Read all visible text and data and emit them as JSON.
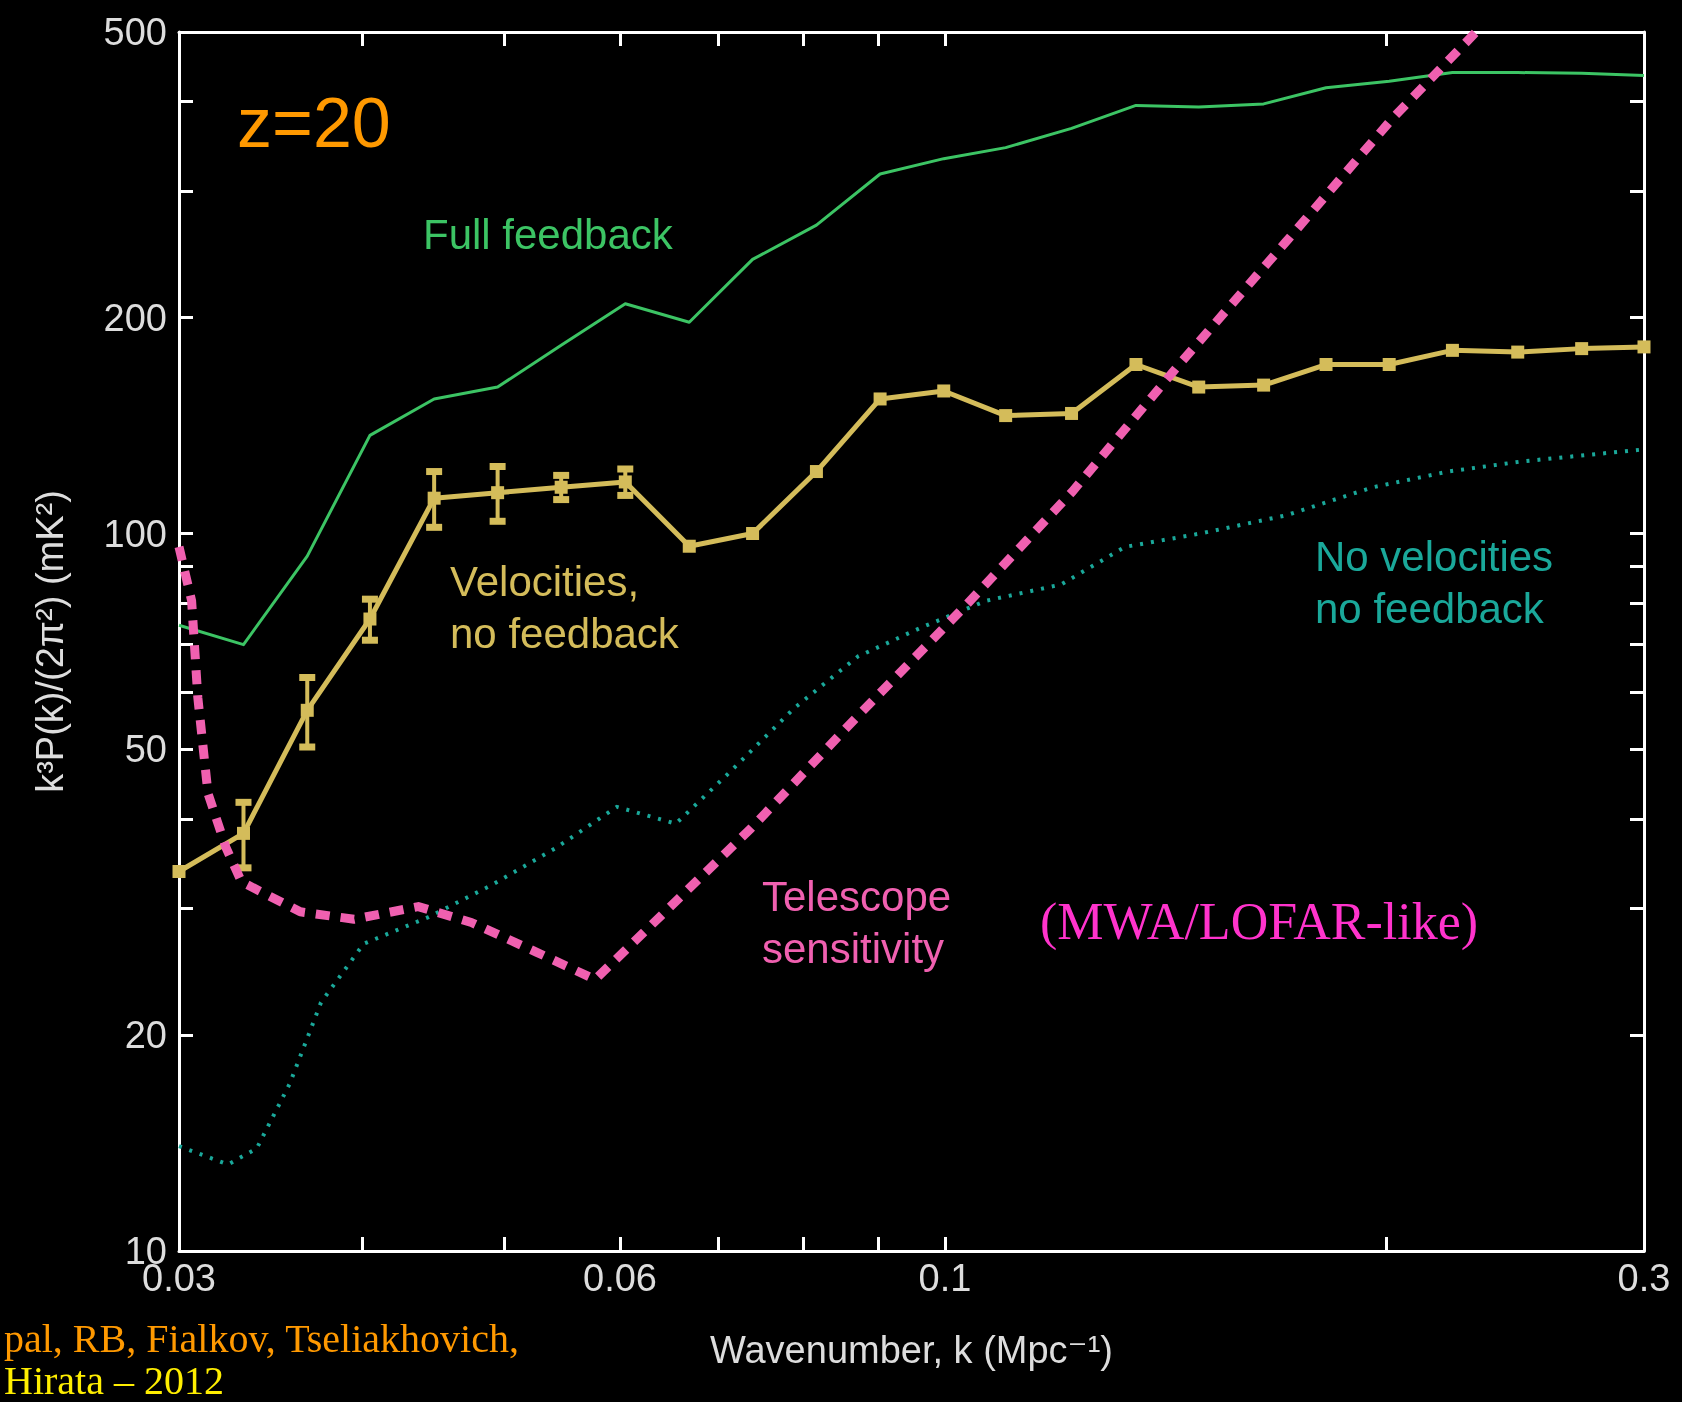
{
  "chart_data": {
    "type": "line",
    "xlabel": "Wavenumber, k (Mpc⁻¹)",
    "ylabel": "k³P(k)/(2π²) (mK²)",
    "log": "xy",
    "xlim": [
      0.03,
      0.3
    ],
    "xticks": [
      0.03,
      {
        "value": 0.04,
        "label": null
      },
      {
        "value": 0.05,
        "label": null
      },
      0.06,
      {
        "value": 0.07,
        "label": null
      },
      {
        "value": 0.08,
        "label": null
      },
      {
        "value": 0.09,
        "label": null
      },
      0.1,
      {
        "value": 0.2,
        "label": null
      },
      0.3
    ],
    "ylim": [
      10,
      500
    ],
    "yticks": [
      10,
      20,
      {
        "value": 30,
        "label": null
      },
      {
        "value": 40,
        "label": null
      },
      50,
      {
        "value": 60,
        "label": null
      },
      {
        "value": 70,
        "label": null
      },
      {
        "value": 80,
        "label": null
      },
      {
        "value": 90,
        "label": null
      },
      100,
      200,
      {
        "value": 300,
        "label": null
      },
      {
        "value": 400,
        "label": null
      },
      500
    ],
    "x": [
      0.03,
      0.0332,
      0.0367,
      0.0405,
      0.0448,
      0.0495,
      0.0547,
      0.0605,
      0.0669,
      0.0739,
      0.0817,
      0.0903,
      0.0998,
      0.11,
      0.122,
      0.135,
      0.149,
      0.165,
      0.182,
      0.201,
      0.222,
      0.246,
      0.272,
      0.3
    ],
    "series": [
      {
        "name": "Full feedback",
        "color": "#3cc464",
        "line_style": "solid",
        "values": [
          74.5,
          70,
          93,
          137,
          154,
          160,
          183,
          209,
          197,
          241,
          269,
          317,
          333,
          345,
          367,
          395,
          393,
          397,
          418,
          427,
          439,
          439,
          438,
          435
        ]
      },
      {
        "name": "Velocities,\nno feedback",
        "color": "#d4bc5a",
        "line_style": "solid",
        "marker": "square",
        "values": [
          33.8,
          38.2,
          56.7,
          76,
          112,
          114,
          116,
          118,
          96,
          100,
          122,
          154,
          158,
          146,
          147,
          172,
          160,
          161,
          172,
          172,
          180,
          179,
          181,
          182
        ],
        "errors": [
          null,
          4,
          6.3,
          5,
          10,
          10,
          4.5,
          5,
          null,
          null,
          null,
          null,
          null,
          null,
          null,
          null,
          null,
          null,
          null,
          null,
          null,
          null,
          null,
          null
        ]
      },
      {
        "name": "No velocities\nno feedback",
        "color": "#1aa89a",
        "line_style": "dotted",
        "x": [
          0.03,
          0.0324,
          0.0339,
          0.0357,
          0.0375,
          0.0401,
          0.0444,
          0.0491,
          0.0543,
          0.0597,
          0.0655,
          0.0713,
          0.0789,
          0.0872,
          0.0964,
          0.1067,
          0.12,
          0.1327,
          0.1494,
          0.1709,
          0.1959,
          0.2205,
          0.2474,
          0.3
        ],
        "values": [
          14.0,
          13.2,
          13.9,
          17.1,
          22.2,
          26.8,
          29.2,
          32.4,
          36.5,
          41.6,
          39.4,
          46.5,
          57.1,
          67.4,
          74,
          80.6,
          84.9,
          95.8,
          100,
          106,
          116,
          122,
          126,
          131
        ]
      },
      {
        "name": "Telescope\nsensitivity",
        "color": "#f060b0",
        "line_style": "dashed",
        "x": [
          0.03,
          0.0306,
          0.0309,
          0.0314,
          0.0323,
          0.0331,
          0.0363,
          0.0395,
          0.0437,
          0.0475,
          0.0526,
          0.0577,
          0.0644,
          0.0737,
          0.0872,
          0.1032,
          0.1222,
          0.1445,
          0.1709,
          0.2023,
          0.2304
        ],
        "values": [
          95.8,
          80.6,
          59.1,
          43.4,
          36.5,
          32.7,
          29.7,
          29.0,
          30.2,
          28.7,
          26.1,
          23.9,
          29.7,
          38.8,
          55.7,
          79.2,
          114.5,
          172,
          255,
          380,
          500
        ]
      }
    ],
    "annotations": [
      "z=20",
      "(MWA/LOFAR-like)",
      "pal, RB, Fialkov, Tseliakhovich,",
      "Hirata – 2012"
    ]
  }
}
